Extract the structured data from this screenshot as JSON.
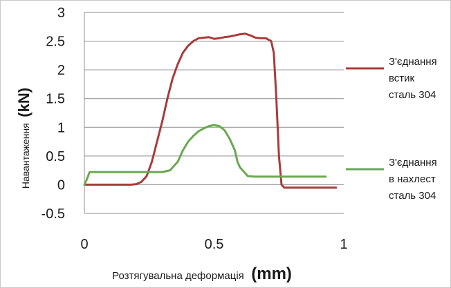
{
  "chart_data": {
    "type": "line",
    "xlabel": "Розтягувальна деформація",
    "xlabel_unit": "(mm)",
    "ylabel": "Навантаження",
    "ylabel_unit": "(kN)",
    "xlim": [
      0,
      1
    ],
    "ylim": [
      -0.5,
      3
    ],
    "x_ticks": [
      "0",
      "0.5",
      "1"
    ],
    "y_ticks": [
      "3",
      "2.5",
      "2",
      "1.5",
      "1",
      "0.5",
      "0",
      "-0.5"
    ],
    "grid": "horizontal",
    "legend_position": "right",
    "series": [
      {
        "name": "З'єднання встик сталь 304",
        "legend_lines": [
          "З'єднання",
          "встик",
          "сталь 304"
        ],
        "color": "#a83b3b",
        "points": [
          [
            0.0,
            0.0
          ],
          [
            0.05,
            0.0
          ],
          [
            0.1,
            0.0
          ],
          [
            0.15,
            0.0
          ],
          [
            0.18,
            0.0
          ],
          [
            0.2,
            0.01
          ],
          [
            0.22,
            0.05
          ],
          [
            0.24,
            0.15
          ],
          [
            0.26,
            0.4
          ],
          [
            0.28,
            0.75
          ],
          [
            0.3,
            1.1
          ],
          [
            0.32,
            1.5
          ],
          [
            0.34,
            1.85
          ],
          [
            0.36,
            2.1
          ],
          [
            0.38,
            2.3
          ],
          [
            0.4,
            2.42
          ],
          [
            0.42,
            2.5
          ],
          [
            0.44,
            2.55
          ],
          [
            0.46,
            2.56
          ],
          [
            0.48,
            2.57
          ],
          [
            0.5,
            2.54
          ],
          [
            0.52,
            2.55
          ],
          [
            0.54,
            2.57
          ],
          [
            0.56,
            2.58
          ],
          [
            0.58,
            2.6
          ],
          [
            0.6,
            2.62
          ],
          [
            0.62,
            2.63
          ],
          [
            0.64,
            2.6
          ],
          [
            0.66,
            2.56
          ],
          [
            0.68,
            2.55
          ],
          [
            0.7,
            2.55
          ],
          [
            0.72,
            2.5
          ],
          [
            0.73,
            2.3
          ],
          [
            0.74,
            1.5
          ],
          [
            0.75,
            0.5
          ],
          [
            0.76,
            0.0
          ],
          [
            0.77,
            -0.05
          ],
          [
            0.8,
            -0.05
          ],
          [
            0.85,
            -0.05
          ],
          [
            0.9,
            -0.05
          ],
          [
            0.95,
            -0.05
          ],
          [
            0.97,
            -0.05
          ]
        ]
      },
      {
        "name": "З'єднання в нахлест сталь 304",
        "legend_lines": [
          "З'єднання",
          "в нахлест",
          "сталь 304"
        ],
        "color": "#6aa84f",
        "points": [
          [
            0.0,
            0.0
          ],
          [
            0.01,
            0.1
          ],
          [
            0.02,
            0.22
          ],
          [
            0.05,
            0.22
          ],
          [
            0.1,
            0.22
          ],
          [
            0.15,
            0.22
          ],
          [
            0.2,
            0.22
          ],
          [
            0.25,
            0.22
          ],
          [
            0.3,
            0.22
          ],
          [
            0.33,
            0.25
          ],
          [
            0.36,
            0.4
          ],
          [
            0.38,
            0.6
          ],
          [
            0.4,
            0.75
          ],
          [
            0.42,
            0.85
          ],
          [
            0.44,
            0.93
          ],
          [
            0.46,
            0.98
          ],
          [
            0.48,
            1.02
          ],
          [
            0.5,
            1.04
          ],
          [
            0.52,
            1.02
          ],
          [
            0.54,
            0.95
          ],
          [
            0.56,
            0.8
          ],
          [
            0.58,
            0.6
          ],
          [
            0.59,
            0.4
          ],
          [
            0.6,
            0.3
          ],
          [
            0.61,
            0.25
          ],
          [
            0.62,
            0.2
          ],
          [
            0.63,
            0.15
          ],
          [
            0.66,
            0.14
          ],
          [
            0.7,
            0.14
          ],
          [
            0.75,
            0.14
          ],
          [
            0.8,
            0.14
          ],
          [
            0.85,
            0.14
          ],
          [
            0.9,
            0.14
          ],
          [
            0.93,
            0.14
          ]
        ]
      }
    ]
  }
}
